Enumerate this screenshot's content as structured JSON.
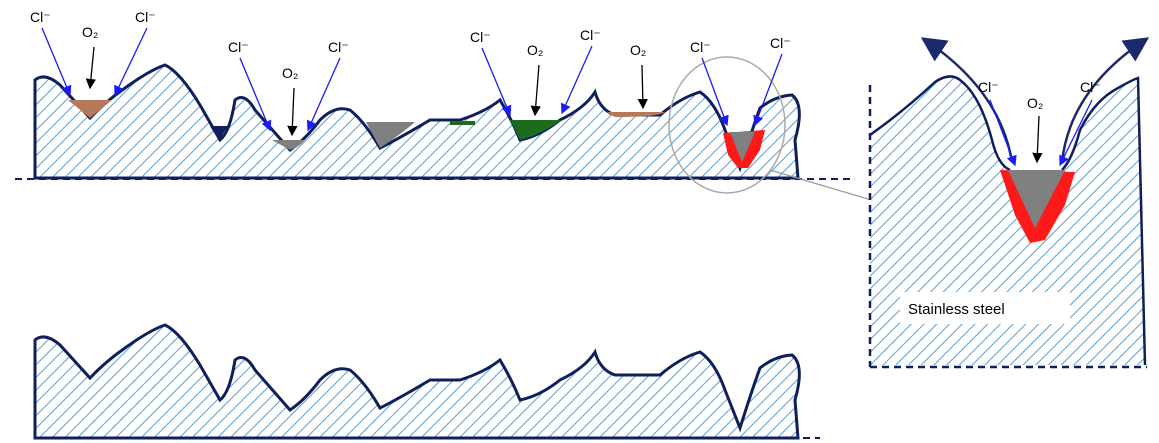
{
  "top_labels": [
    "Cl⁻",
    "O₂",
    "Cl⁻",
    "Cl⁻",
    "O₂",
    "Cl⁻",
    "Cl⁻",
    "O₂",
    "Cl⁻",
    "O₂",
    "Cl⁻",
    "Cl⁻"
  ],
  "zoom_labels": [
    "Cl⁻",
    "O₂",
    "Cl⁻"
  ],
  "material_label": "Stainless steel"
}
